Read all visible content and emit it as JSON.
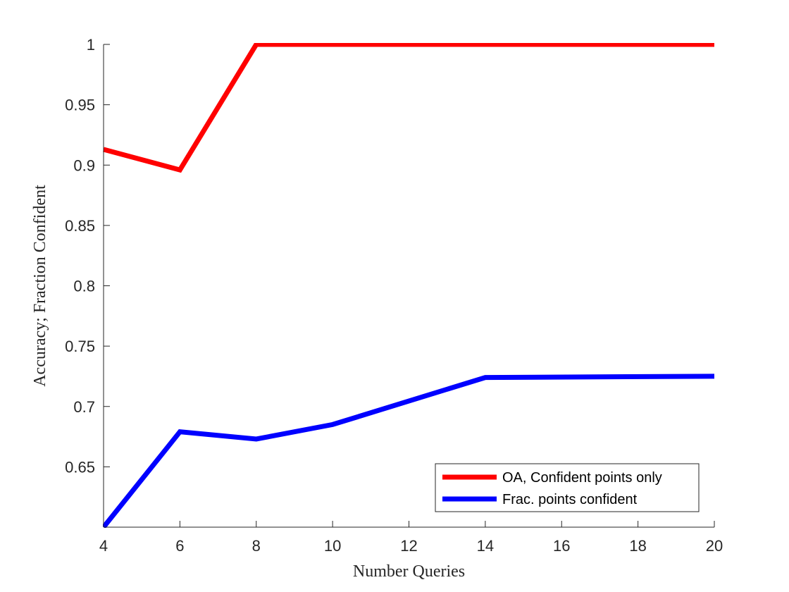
{
  "chart_data": {
    "type": "line",
    "title": "",
    "xlabel": "Number Queries",
    "ylabel": "Accuracy; Fraction Confident",
    "xlim": [
      4,
      20
    ],
    "ylim": [
      0.6,
      1.0
    ],
    "xticks": [
      4,
      6,
      8,
      10,
      12,
      14,
      16,
      18,
      20
    ],
    "yticks": [
      0.65,
      0.7,
      0.75,
      0.8,
      0.85,
      0.9,
      0.95,
      1
    ],
    "xtick_labels": [
      "4",
      "6",
      "8",
      "10",
      "12",
      "14",
      "16",
      "18",
      "20"
    ],
    "ytick_labels": [
      "0.65",
      "0.7",
      "0.75",
      "0.8",
      "0.85",
      "0.9",
      "0.95",
      "1"
    ],
    "grid": false,
    "legend_position": "bottom-right",
    "series": [
      {
        "name": "OA, Confident points only",
        "color": "#ff0000",
        "x": [
          4,
          6,
          8,
          14,
          20
        ],
        "y": [
          0.913,
          0.896,
          1.0,
          1.0,
          1.0
        ]
      },
      {
        "name": "Frac. points confident",
        "color": "#0000ff",
        "x": [
          4,
          6,
          8,
          10,
          14,
          20
        ],
        "y": [
          0.6,
          0.679,
          0.673,
          0.685,
          0.724,
          0.725
        ]
      }
    ]
  }
}
